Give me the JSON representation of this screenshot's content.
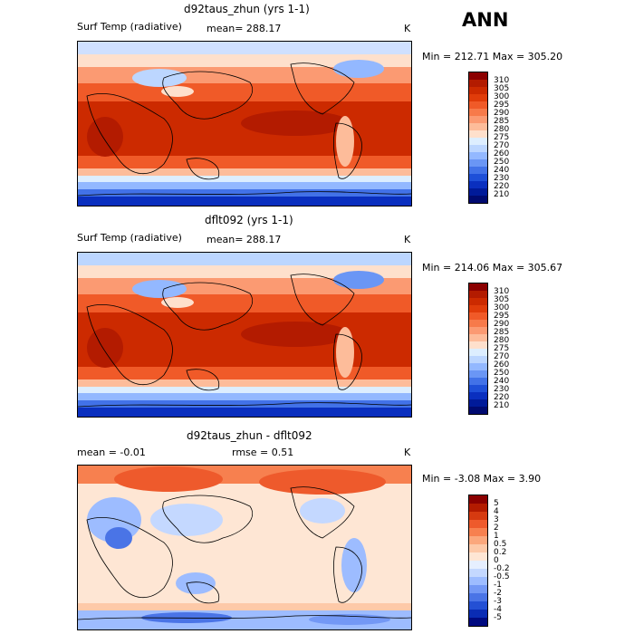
{
  "season_label": "ANN",
  "panels": [
    {
      "title": "d92taus_zhun (yrs 1-1)",
      "variable": "Surf Temp (radiative)",
      "stat_left": "mean=  288.17",
      "stat_right": "",
      "units": "K",
      "minmax": "Min = 212.71  Max = 305.20",
      "palette": [
        "#8b0000",
        "#b31b00",
        "#cc2a00",
        "#e03c0a",
        "#f05a28",
        "#f77a4a",
        "#fb9a72",
        "#fdbc9a",
        "#fee0cc",
        "#ddeeff",
        "#bcd6ff",
        "#93b8ff",
        "#6a96f5",
        "#4272e8",
        "#1e4fd8",
        "#0a2fbf",
        "#001a99",
        "#000a70"
      ],
      "levels": [
        "310",
        "305",
        "300",
        "295",
        "290",
        "285",
        "280",
        "275",
        "270",
        "260",
        "250",
        "240",
        "230",
        "220",
        "210"
      ]
    },
    {
      "title": "dflt092 (yrs 1-1)",
      "variable": "Surf Temp (radiative)",
      "stat_left": "mean=  288.17",
      "stat_right": "",
      "units": "K",
      "minmax": "Min = 214.06  Max = 305.67",
      "palette": [
        "#8b0000",
        "#b31b00",
        "#cc2a00",
        "#e03c0a",
        "#f05a28",
        "#f77a4a",
        "#fb9a72",
        "#fdbc9a",
        "#fee0cc",
        "#ddeeff",
        "#bcd6ff",
        "#93b8ff",
        "#6a96f5",
        "#4272e8",
        "#1e4fd8",
        "#0a2fbf",
        "#001a99",
        "#000a70"
      ],
      "levels": [
        "310",
        "305",
        "300",
        "295",
        "290",
        "285",
        "280",
        "275",
        "270",
        "260",
        "250",
        "240",
        "230",
        "220",
        "210"
      ]
    },
    {
      "title": "d92taus_zhun - dflt092",
      "variable": "",
      "stat_left": "mean =   -0.01",
      "stat_right": "rmse =    0.51",
      "units": "K",
      "minmax": "Min =  -3.08  Max =    3.90",
      "palette": [
        "#8b0000",
        "#b31b00",
        "#d63a10",
        "#ee5a2c",
        "#f7804f",
        "#fba77c",
        "#fdc9a8",
        "#fee6d4",
        "#e6efff",
        "#c4d8ff",
        "#9dbcff",
        "#7398f5",
        "#4a74e6",
        "#2450d4",
        "#0a2cb4",
        "#000a80"
      ],
      "levels": [
        "5",
        "4",
        "3",
        "2",
        "1",
        "0.5",
        "0.2",
        "0",
        "-0.2",
        "-0.5",
        "-1",
        "-2",
        "-3",
        "-4",
        "-5"
      ]
    }
  ]
}
